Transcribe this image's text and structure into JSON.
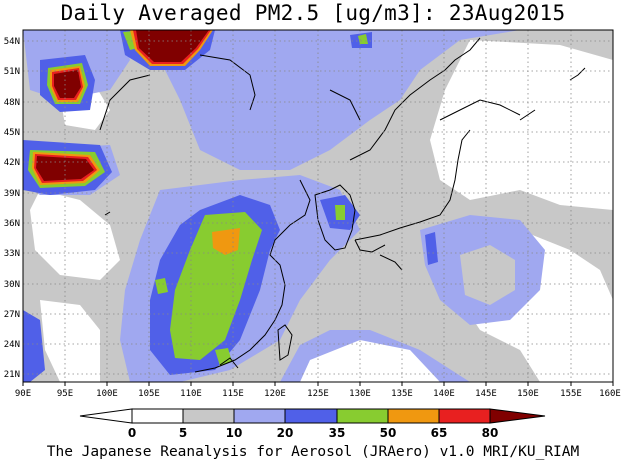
{
  "title": "Daily Averaged PM2.5 [ug/m3]: 23Aug2015",
  "credit": "The Japanese Reanalysis for Aerosol (JRAero) v1.0 MRI/KU_RIAM",
  "map": {
    "lon_range": [
      90,
      160
    ],
    "lat_range": [
      20,
      55
    ],
    "lon_ticks": [
      "90E",
      "95E",
      "100E",
      "105E",
      "110E",
      "115E",
      "120E",
      "125E",
      "130E",
      "135E",
      "140E",
      "145E",
      "150E",
      "155E",
      "160E"
    ],
    "lat_ticks": [
      "21N",
      "24N",
      "27N",
      "30N",
      "33N",
      "36N",
      "39N",
      "42N",
      "45N",
      "48N",
      "51N",
      "54N"
    ],
    "grid": "dotted"
  },
  "colorbar": {
    "levels": [
      "0",
      "5",
      "10",
      "20",
      "35",
      "50",
      "65",
      "80"
    ],
    "colors": [
      "#ffffff",
      "#c8c8c8",
      "#a0a8f0",
      "#5060e8",
      "#88cc30",
      "#f09810",
      "#e82020",
      "#800000"
    ]
  }
}
